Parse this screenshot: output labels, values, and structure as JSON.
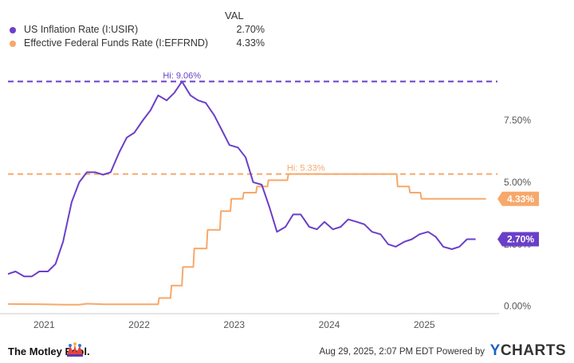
{
  "legend": {
    "header": "VAL",
    "items": [
      {
        "name": "US Inflation Rate (I:USIR)",
        "value": "2.70%",
        "color": "#6a3fc8"
      },
      {
        "name": "Effective Federal Funds Rate (I:EFFRND)",
        "value": "4.33%",
        "color": "#f7a86a"
      }
    ]
  },
  "chart_data": {
    "type": "line",
    "x_tick_labels": [
      "2021",
      "2022",
      "2023",
      "2024",
      "2025"
    ],
    "y_tick_labels": [
      "7.50%",
      "5.00%",
      "2.50%",
      "0.00%"
    ],
    "yticks": [
      7.5,
      5.0,
      2.5,
      0.0
    ],
    "ylim": [
      -0.3,
      10.1
    ],
    "xlim": [
      2020.62,
      2025.77
    ],
    "grid": false,
    "legend_position": "top-left",
    "series": [
      {
        "name": "US Inflation Rate (I:USIR)",
        "color": "#6a3fc8",
        "end_label": "2.70%",
        "hi_label": "Hi: 9.06%",
        "hi_value": 9.06,
        "points": [
          [
            2020.62,
            1.3
          ],
          [
            2020.7,
            1.4
          ],
          [
            2020.79,
            1.2
          ],
          [
            2020.87,
            1.2
          ],
          [
            2020.95,
            1.4
          ],
          [
            2021.04,
            1.4
          ],
          [
            2021.12,
            1.7
          ],
          [
            2021.2,
            2.6
          ],
          [
            2021.29,
            4.2
          ],
          [
            2021.37,
            5.0
          ],
          [
            2021.45,
            5.4
          ],
          [
            2021.54,
            5.4
          ],
          [
            2021.62,
            5.3
          ],
          [
            2021.7,
            5.4
          ],
          [
            2021.79,
            6.2
          ],
          [
            2021.87,
            6.8
          ],
          [
            2021.95,
            7.0
          ],
          [
            2022.04,
            7.5
          ],
          [
            2022.12,
            7.9
          ],
          [
            2022.2,
            8.5
          ],
          [
            2022.29,
            8.3
          ],
          [
            2022.37,
            8.6
          ],
          [
            2022.45,
            9.06
          ],
          [
            2022.54,
            8.5
          ],
          [
            2022.62,
            8.3
          ],
          [
            2022.7,
            8.2
          ],
          [
            2022.79,
            7.7
          ],
          [
            2022.87,
            7.1
          ],
          [
            2022.95,
            6.5
          ],
          [
            2023.04,
            6.4
          ],
          [
            2023.12,
            6.0
          ],
          [
            2023.2,
            5.0
          ],
          [
            2023.29,
            4.9
          ],
          [
            2023.37,
            4.0
          ],
          [
            2023.45,
            3.0
          ],
          [
            2023.54,
            3.2
          ],
          [
            2023.62,
            3.7
          ],
          [
            2023.7,
            3.7
          ],
          [
            2023.79,
            3.2
          ],
          [
            2023.87,
            3.1
          ],
          [
            2023.95,
            3.4
          ],
          [
            2024.04,
            3.1
          ],
          [
            2024.12,
            3.2
          ],
          [
            2024.2,
            3.5
          ],
          [
            2024.29,
            3.4
          ],
          [
            2024.37,
            3.3
          ],
          [
            2024.45,
            3.0
          ],
          [
            2024.54,
            2.9
          ],
          [
            2024.62,
            2.5
          ],
          [
            2024.7,
            2.4
          ],
          [
            2024.79,
            2.6
          ],
          [
            2024.87,
            2.7
          ],
          [
            2024.95,
            2.9
          ],
          [
            2025.04,
            3.0
          ],
          [
            2025.12,
            2.8
          ],
          [
            2025.2,
            2.4
          ],
          [
            2025.29,
            2.3
          ],
          [
            2025.37,
            2.4
          ],
          [
            2025.45,
            2.7
          ],
          [
            2025.54,
            2.7
          ]
        ]
      },
      {
        "name": "Effective Federal Funds Rate (I:EFFRND)",
        "color": "#f7a86a",
        "end_label": "4.33%",
        "hi_label": "Hi: 5.33%",
        "hi_value": 5.33,
        "points": [
          [
            2020.62,
            0.09
          ],
          [
            2021.0,
            0.08
          ],
          [
            2021.2,
            0.06
          ],
          [
            2021.37,
            0.06
          ],
          [
            2021.45,
            0.1
          ],
          [
            2021.62,
            0.08
          ],
          [
            2022.2,
            0.08
          ],
          [
            2022.21,
            0.33
          ],
          [
            2022.33,
            0.33
          ],
          [
            2022.34,
            0.83
          ],
          [
            2022.45,
            0.83
          ],
          [
            2022.46,
            1.58
          ],
          [
            2022.57,
            1.58
          ],
          [
            2022.58,
            2.33
          ],
          [
            2022.71,
            2.33
          ],
          [
            2022.72,
            3.08
          ],
          [
            2022.85,
            3.08
          ],
          [
            2022.86,
            3.83
          ],
          [
            2022.96,
            3.83
          ],
          [
            2022.97,
            4.33
          ],
          [
            2023.09,
            4.33
          ],
          [
            2023.1,
            4.58
          ],
          [
            2023.23,
            4.58
          ],
          [
            2023.24,
            4.83
          ],
          [
            2023.35,
            4.83
          ],
          [
            2023.36,
            5.08
          ],
          [
            2023.56,
            5.08
          ],
          [
            2023.57,
            5.33
          ],
          [
            2024.71,
            5.33
          ],
          [
            2024.72,
            4.83
          ],
          [
            2024.84,
            4.83
          ],
          [
            2024.85,
            4.58
          ],
          [
            2024.96,
            4.58
          ],
          [
            2024.97,
            4.33
          ],
          [
            2025.65,
            4.33
          ]
        ]
      }
    ]
  },
  "footer": {
    "brand": "The Motley Fool.",
    "timestamp": "Aug 29, 2025, 2:07 PM EDT Powered by",
    "ycharts_y": "Y",
    "ycharts_rest": "CHARTS"
  }
}
